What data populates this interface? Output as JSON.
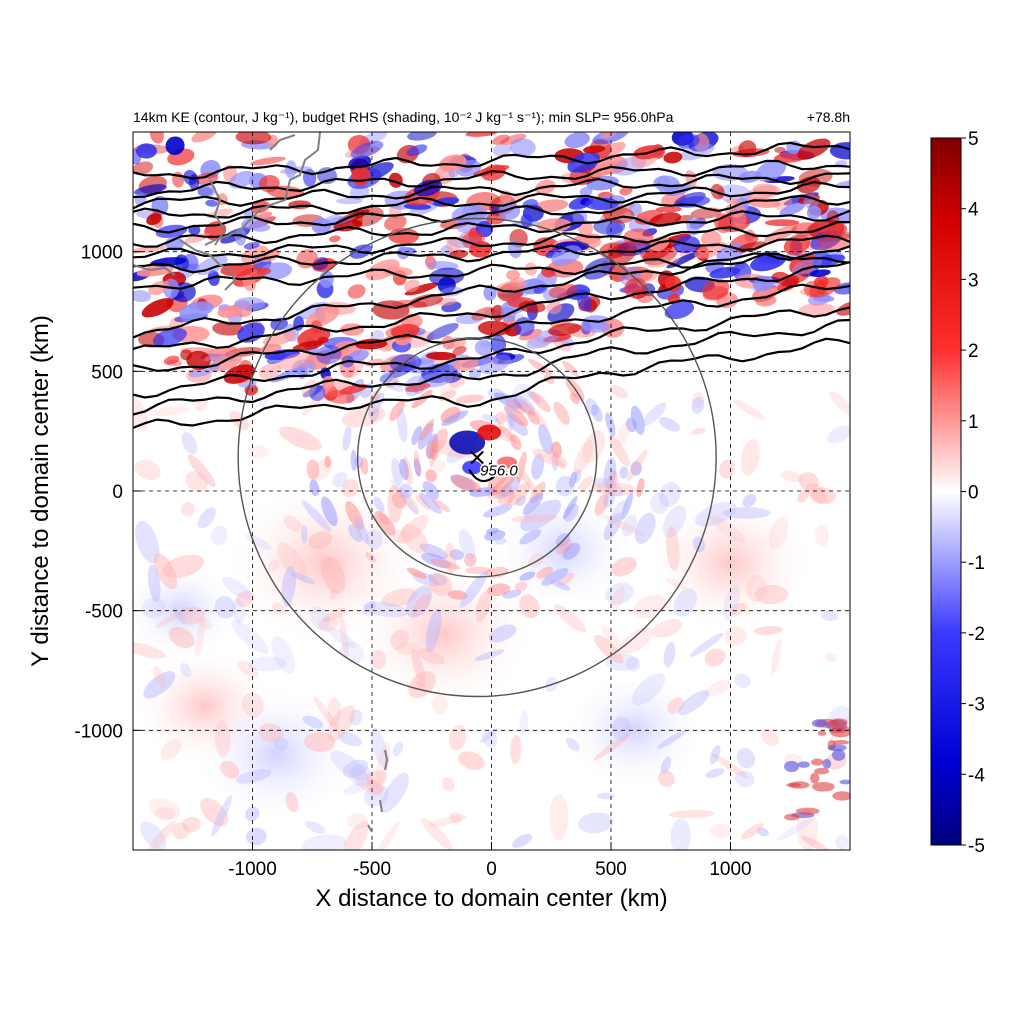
{
  "chart_data": {
    "type": "heatmap",
    "title": "14km KE (contour, J kg⁻¹), budget RHS (shading, 10⁻² J kg⁻¹ s⁻¹); min SLP= 956.0hPa",
    "time_label": "+78.8h",
    "xlabel": "X distance to domain center (km)",
    "ylabel": "Y distance to domain center (km)",
    "xlim": [
      -1500,
      1500
    ],
    "ylim": [
      -1500,
      1500
    ],
    "x_ticks": [
      -1000,
      -500,
      0,
      500,
      1000
    ],
    "y_ticks": [
      -1000,
      -500,
      0,
      500,
      1000
    ],
    "x_tick_labels": [
      "-1000",
      "-500",
      "0",
      "500",
      "1000"
    ],
    "y_tick_labels": [
      "-1000",
      "-500",
      "0",
      "500",
      "1000"
    ],
    "grid": "dashed",
    "colorbar": {
      "range": [
        -5,
        5
      ],
      "ticks": [
        5,
        4,
        3,
        2,
        1,
        0,
        -1,
        -2,
        -3,
        -4,
        -5
      ],
      "tick_labels": [
        "5",
        "4",
        "3",
        "2",
        "1",
        "0",
        "-1",
        "-2",
        "-3",
        "-4",
        "-5"
      ],
      "colormap": "blue-white-red",
      "color_low": "#00007f",
      "color_mid": "#ffffff",
      "color_high": "#7f0000"
    },
    "storm_center": {
      "x": -60,
      "y": 140,
      "marker": "x",
      "label": "956.0"
    },
    "range_rings": [
      {
        "center_x": -60,
        "center_y": 140,
        "radius_km": 500
      },
      {
        "center_x": -60,
        "center_y": 140,
        "radius_km": 1000
      }
    ],
    "ke_contours_north_y_km": [
      1380,
      1310,
      1260,
      1210,
      1160,
      1100,
      1040,
      990,
      920,
      840,
      760,
      680,
      590,
      520,
      440
    ]
  }
}
